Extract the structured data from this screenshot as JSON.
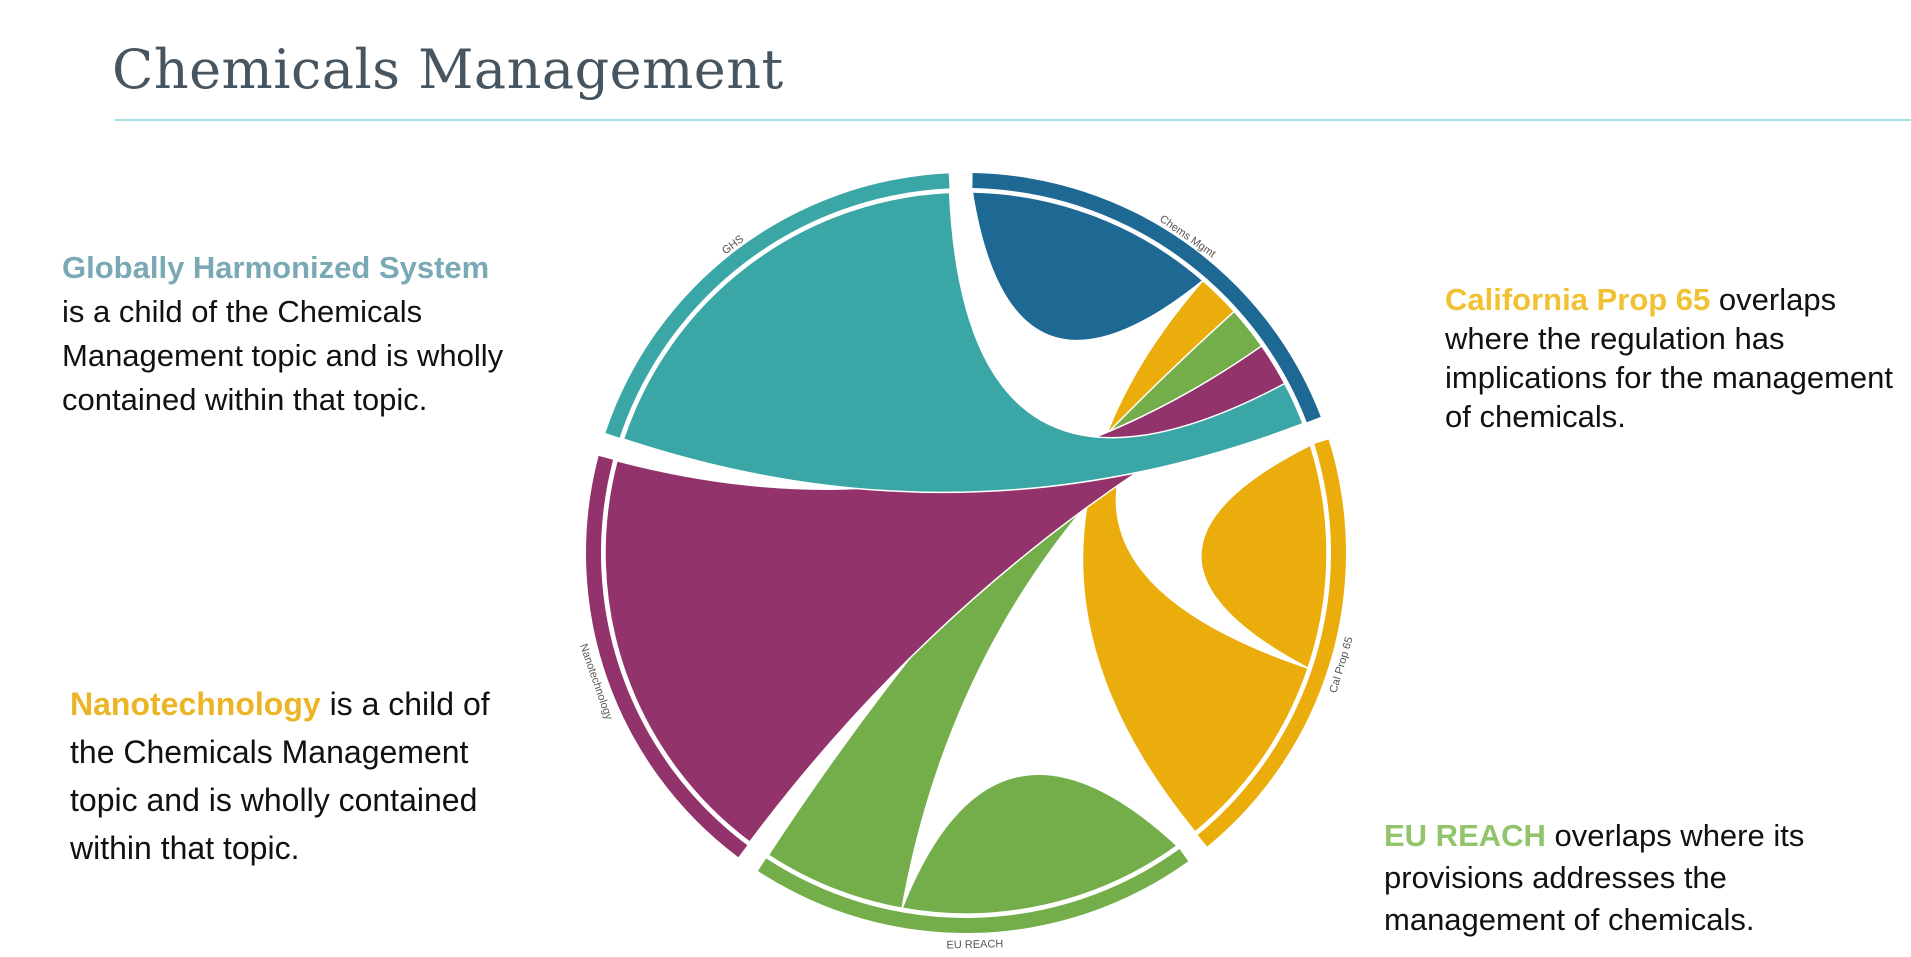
{
  "title": "Chemicals Management",
  "blocks": {
    "ghs": {
      "highlight": "Globally Harmonized System",
      "text": "is a child of the Chemicals Management topic and is wholly contained within that topic.",
      "color": "#7aa9b6"
    },
    "cal": {
      "highlight": "California Prop 65",
      "text": " overlaps where the regulation has implications for the management of chemicals.",
      "color": "#f1c132"
    },
    "nano": {
      "highlight": "Nanotechnology",
      "text": " is a child of the Chemicals Management topic and is wholly contained within that topic.",
      "color": "#ebb526"
    },
    "eu": {
      "highlight": "EU REACH",
      "text": " overlaps where its provisions addresses the management of chemicals.",
      "color": "#92c46c"
    }
  },
  "chart_data": {
    "type": "chord",
    "groups": [
      {
        "name": "Chems Mgmt",
        "color": "#1e6894",
        "links": [
          {
            "to": "Chems Mgmt",
            "value": 40
          },
          {
            "to": "Cal Prop 65",
            "value": 7
          },
          {
            "to": "EU REACH",
            "value": 7
          },
          {
            "to": "Nanotechnology",
            "value": 7
          },
          {
            "to": "GHS",
            "value": 7
          }
        ]
      },
      {
        "name": "Cal Prop 65",
        "color": "#ebad0b",
        "links": [
          {
            "to": "Cal Prop 65",
            "value": 36
          },
          {
            "to": "Chems Mgmt",
            "value": 32
          }
        ]
      },
      {
        "name": "EU REACH",
        "color": "#73ae4b",
        "links": [
          {
            "to": "EU REACH",
            "value": 46
          },
          {
            "to": "Chems Mgmt",
            "value": 23
          }
        ]
      },
      {
        "name": "Nanotechnology",
        "color": "#92336c",
        "links": [
          {
            "to": "Chems Mgmt",
            "value": 68
          }
        ]
      },
      {
        "name": "GHS",
        "color": "#3aa6a5",
        "links": [
          {
            "to": "Chems Mgmt",
            "value": 69
          }
        ]
      }
    ]
  }
}
